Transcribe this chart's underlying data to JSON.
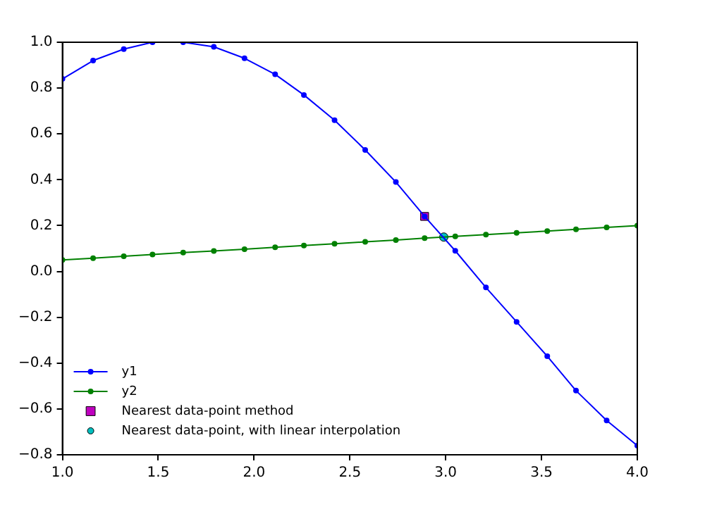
{
  "chart_data": {
    "type": "line",
    "x": [
      1.0,
      1.16,
      1.32,
      1.47,
      1.63,
      1.79,
      1.95,
      2.11,
      2.26,
      2.42,
      2.58,
      2.74,
      2.89,
      3.05,
      3.21,
      3.37,
      3.53,
      3.68,
      3.84,
      4.0
    ],
    "series": [
      {
        "name": "y1",
        "color": "#0000ff",
        "marker": "circle",
        "values": [
          0.84,
          0.92,
          0.97,
          1.0,
          1.0,
          0.98,
          0.93,
          0.86,
          0.77,
          0.66,
          0.53,
          0.39,
          0.24,
          0.09,
          -0.07,
          -0.22,
          -0.37,
          -0.52,
          -0.65,
          -0.76
        ]
      },
      {
        "name": "y2",
        "color": "#008000",
        "marker": "circle",
        "values": [
          0.05,
          0.058,
          0.066,
          0.074,
          0.082,
          0.089,
          0.097,
          0.105,
          0.113,
          0.121,
          0.129,
          0.137,
          0.145,
          0.153,
          0.161,
          0.168,
          0.176,
          0.184,
          0.192,
          0.2
        ]
      },
      {
        "name": "Nearest data-point method",
        "type": "scatter",
        "color": "#bf00bf",
        "marker": "square",
        "x": [
          2.89
        ],
        "values": [
          0.24
        ]
      },
      {
        "name": "Nearest data-point, with linear interpolation",
        "type": "scatter",
        "color": "#00bfbf",
        "marker": "circle",
        "x": [
          2.99
        ],
        "values": [
          0.15
        ]
      }
    ],
    "xlim": [
      1.0,
      4.0
    ],
    "xticks": [
      {
        "value": 1,
        "label": "1.0"
      },
      {
        "value": 1.5,
        "label": "1.5"
      },
      {
        "value": 2,
        "label": "2.0"
      },
      {
        "value": 2.5,
        "label": "2.5"
      },
      {
        "value": 3,
        "label": "3.0"
      },
      {
        "value": 3.5,
        "label": "3.5"
      },
      {
        "value": 4,
        "label": "4.0"
      }
    ],
    "ylim": [
      -0.8,
      1.0
    ],
    "yticks": [
      {
        "value": -0.8,
        "label": "−0.8"
      },
      {
        "value": -0.6,
        "label": "−0.6"
      },
      {
        "value": -0.4,
        "label": "−0.4"
      },
      {
        "value": -0.2,
        "label": "−0.2"
      },
      {
        "value": 0,
        "label": "0.0"
      },
      {
        "value": 0.2,
        "label": "0.2"
      },
      {
        "value": 0.4,
        "label": "0.4"
      },
      {
        "value": 0.6,
        "label": "0.6"
      },
      {
        "value": 0.8,
        "label": "0.8"
      },
      {
        "value": 1,
        "label": "1.0"
      }
    ],
    "grid": false,
    "legend": "bottom left"
  }
}
